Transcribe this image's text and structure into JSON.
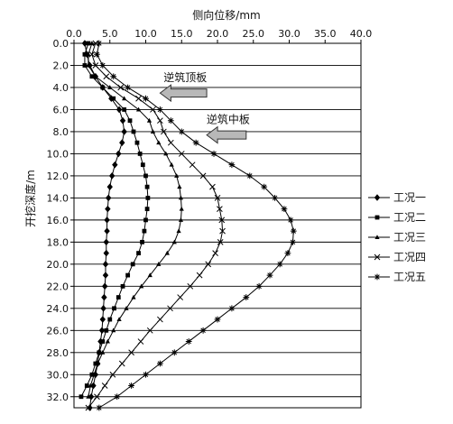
{
  "chart_data": {
    "type": "line",
    "title": "",
    "xlabel": "侧向位移/mm",
    "ylabel": "开挖深度/m",
    "x_axis_position": "top",
    "xlim": [
      0,
      40
    ],
    "ylim": [
      0,
      33
    ],
    "y_inverted": true,
    "x_ticks": [
      "0.0",
      "5.0",
      "10.0",
      "15.0",
      "20.0",
      "25.0",
      "30.0",
      "35.0",
      "40.0"
    ],
    "y_ticks": [
      "0.0",
      "2.0",
      "4.0",
      "6.0",
      "8.0",
      "10.0",
      "12.0",
      "14.0",
      "16.0",
      "18.0",
      "20.0",
      "22.0",
      "24.0",
      "26.0",
      "28.0",
      "30.0",
      "32.0"
    ],
    "grid": "horizontal",
    "legend_position": "right",
    "series": [
      {
        "name": "工况一",
        "marker": "diamond",
        "depth": [
          0,
          1,
          2,
          3,
          4,
          5,
          6,
          7,
          8,
          9,
          10,
          11,
          12,
          13,
          14,
          15,
          16,
          17,
          18,
          19,
          20,
          21,
          22,
          23,
          24,
          25,
          26,
          27,
          28,
          29,
          30,
          31,
          32,
          33
        ],
        "displacement": [
          1.5,
          1.8,
          2.2,
          3.0,
          4.0,
          5.2,
          6.3,
          6.8,
          7.0,
          6.7,
          6.2,
          5.7,
          5.3,
          5.0,
          4.8,
          4.7,
          4.6,
          4.6,
          4.5,
          4.5,
          4.4,
          4.4,
          4.3,
          4.2,
          4.1,
          4.0,
          3.9,
          3.7,
          3.5,
          3.3,
          3.0,
          2.7,
          2.4,
          2.2
        ]
      },
      {
        "name": "工况二",
        "marker": "square",
        "depth": [
          0,
          1,
          2,
          3,
          4,
          5,
          6,
          7,
          8,
          9,
          10,
          11,
          12,
          13,
          14,
          15,
          16,
          17,
          18,
          19,
          20,
          21,
          22,
          23,
          24,
          25,
          26,
          27,
          28,
          29,
          30,
          31,
          32
        ],
        "displacement": [
          2.0,
          1.5,
          1.5,
          2.5,
          4.0,
          5.5,
          7.0,
          7.8,
          8.3,
          8.8,
          9.2,
          9.6,
          10.0,
          10.2,
          10.3,
          10.2,
          10.0,
          9.8,
          9.5,
          9.0,
          8.2,
          7.5,
          6.8,
          6.2,
          5.6,
          5.0,
          4.5,
          4.0,
          3.5,
          3.0,
          2.5,
          1.8,
          1.0
        ]
      },
      {
        "name": "工况三",
        "marker": "triangle",
        "depth": [
          0,
          1,
          2,
          3,
          4,
          5,
          6,
          7,
          8,
          9,
          10,
          11,
          12,
          13,
          14,
          15,
          16,
          17,
          18,
          19,
          20,
          21,
          22,
          23,
          24,
          25,
          26,
          27,
          28,
          29,
          30,
          31,
          32
        ],
        "displacement": [
          2.5,
          2.0,
          2.0,
          3.0,
          5.0,
          7.0,
          9.0,
          10.5,
          11.0,
          11.8,
          12.8,
          13.6,
          14.3,
          14.7,
          14.9,
          15.0,
          14.9,
          14.6,
          14.0,
          13.0,
          11.8,
          10.6,
          9.4,
          8.3,
          7.3,
          6.3,
          5.5,
          4.7,
          4.0,
          3.3,
          2.8,
          2.3,
          2.0
        ]
      },
      {
        "name": "工况四",
        "marker": "x",
        "depth": [
          0,
          1,
          2,
          3,
          4,
          5,
          6,
          7,
          8,
          9,
          10,
          11,
          12,
          13,
          14,
          15,
          16,
          17,
          18,
          19,
          20,
          21,
          22,
          23,
          24,
          25,
          26,
          27,
          28,
          29,
          30,
          31,
          32,
          33
        ],
        "displacement": [
          3.0,
          2.5,
          3.0,
          4.5,
          6.5,
          9.0,
          11.0,
          12.0,
          12.5,
          13.5,
          15.0,
          16.5,
          18.0,
          19.3,
          20.0,
          20.3,
          20.6,
          20.7,
          20.4,
          19.7,
          18.7,
          17.5,
          16.2,
          14.8,
          13.4,
          12.0,
          10.6,
          9.3,
          8.0,
          6.7,
          5.4,
          4.3,
          3.2,
          2.0
        ]
      },
      {
        "name": "工况五",
        "marker": "asterisk",
        "depth": [
          0,
          1,
          2,
          3,
          4,
          5,
          6,
          7,
          8,
          9,
          10,
          11,
          12,
          13,
          14,
          15,
          16,
          17,
          18,
          19,
          20,
          21,
          22,
          23,
          24,
          25,
          26,
          27,
          28,
          29,
          30,
          31,
          32,
          33
        ],
        "displacement": [
          3.5,
          3.2,
          4.0,
          5.5,
          7.5,
          10.0,
          12.0,
          13.5,
          15.0,
          17.0,
          19.5,
          22.0,
          24.5,
          26.5,
          28.0,
          29.3,
          30.2,
          30.6,
          30.5,
          29.8,
          28.7,
          27.3,
          25.8,
          24.0,
          22.0,
          20.0,
          18.0,
          16.0,
          14.0,
          12.0,
          10.0,
          8.0,
          6.0,
          3.5
        ]
      }
    ],
    "annotations": [
      {
        "text": "逆筑顶板",
        "arrow_tip_x": 12.0,
        "arrow_tail_x": 18.5,
        "depth": 4.5
      },
      {
        "text": "逆筑中板",
        "arrow_tip_x": 18.5,
        "arrow_tail_x": 24.0,
        "depth": 8.3
      }
    ]
  }
}
